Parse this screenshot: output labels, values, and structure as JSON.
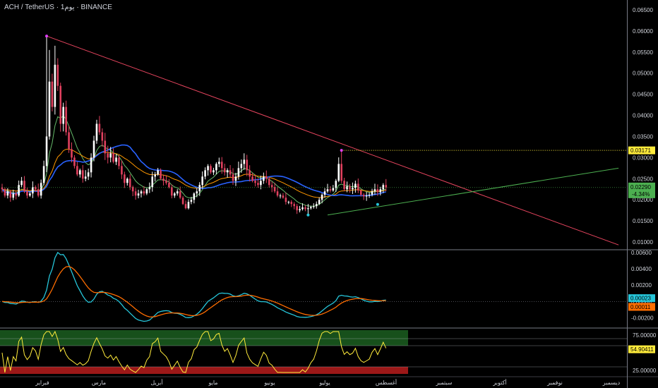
{
  "header": {
    "symbol": "ACH / TetherUS",
    "interval": "1يوم",
    "exchange": "BINANCE",
    "sep": "·"
  },
  "colors": {
    "background": "#000000",
    "up": "#ffffff",
    "down": "#e0405e",
    "resistance": "#e8455f",
    "support": "#4caf50",
    "ma_fast": "#66bb6a",
    "ma_mid": "#ff9800",
    "ma_slow": "#2962ff",
    "macd": "#26c6da",
    "signal": "#ff6d00",
    "rsi": "#ffeb3b",
    "overbought": "#1b5e20",
    "oversold": "#b71c1c"
  },
  "chart_data": [
    {
      "type": "candlestick",
      "name": "price",
      "y_ticks": [
        "0.06500",
        "0.06000",
        "0.05500",
        "0.05000",
        "0.04500",
        "0.04000",
        "0.03500",
        "0.03000",
        "0.02500",
        "0.02000",
        "0.01500",
        "0.01000"
      ],
      "ylim": [
        0.0085,
        0.066
      ],
      "x_tick_labels": [
        "فبراير",
        "مارس",
        "أبريل",
        "مايو",
        "يونيو",
        "يوليو",
        "أغسطس",
        "سبتمبر",
        "أكتوبر",
        "نوفمبر",
        "ديسمبر"
      ],
      "closes": [
        0.0225,
        0.021,
        0.022,
        0.0205,
        0.0215,
        0.021,
        0.0235,
        0.0245,
        0.022,
        0.021,
        0.0215,
        0.023,
        0.0225,
        0.021,
        0.024,
        0.028,
        0.035,
        0.048,
        0.042,
        0.052,
        0.047,
        0.038,
        0.042,
        0.036,
        0.032,
        0.03,
        0.028,
        0.026,
        0.027,
        0.025,
        0.0255,
        0.0265,
        0.03,
        0.034,
        0.038,
        0.036,
        0.034,
        0.031,
        0.03,
        0.031,
        0.029,
        0.03,
        0.028,
        0.026,
        0.024,
        0.025,
        0.023,
        0.022,
        0.021,
        0.0215,
        0.022,
        0.0215,
        0.0225,
        0.023,
        0.0255,
        0.026,
        0.027,
        0.025,
        0.0245,
        0.024,
        0.023,
        0.021,
        0.0215,
        0.022,
        0.0205,
        0.019,
        0.018,
        0.0195,
        0.02,
        0.0215,
        0.022,
        0.0235,
        0.0255,
        0.027,
        0.028,
        0.0265,
        0.027,
        0.0285,
        0.029,
        0.0275,
        0.0265,
        0.027,
        0.026,
        0.0245,
        0.0255,
        0.0275,
        0.0285,
        0.0295,
        0.027,
        0.0255,
        0.0245,
        0.024,
        0.0235,
        0.0245,
        0.0255,
        0.025,
        0.0235,
        0.023,
        0.022,
        0.021,
        0.021,
        0.0205,
        0.0195,
        0.0195,
        0.019,
        0.0185,
        0.0175,
        0.0178,
        0.0182,
        0.0178,
        0.018,
        0.0183,
        0.0185,
        0.019,
        0.02,
        0.0212,
        0.022,
        0.0225,
        0.0222,
        0.0228,
        0.0245,
        0.0285,
        0.0245,
        0.0225,
        0.0232,
        0.0225,
        0.0228,
        0.0238,
        0.0222,
        0.0212,
        0.0208,
        0.021,
        0.0212,
        0.022,
        0.0225,
        0.0218,
        0.0225,
        0.0235,
        0.0229
      ],
      "annotations": {
        "resistance_line": {
          "from": [
            0.0588,
            16
          ],
          "to": [
            0.0093,
            248
          ]
        },
        "support_line": {
          "from": [
            0.0164,
            117
          ],
          "to": [
            0.0275,
            248
          ]
        },
        "swing_high_1": 0.0588,
        "swing_high_2": 0.03171,
        "swing_low": 0.0164
      },
      "last_price_label": "0.02290",
      "change_label": "-4.34%",
      "level_label": "0.03171"
    },
    {
      "type": "line",
      "name": "macd",
      "y_ticks": [
        "0.00600",
        "0.00400",
        "0.00200",
        "0.00000",
        "-0.00200"
      ],
      "ylim": [
        -0.0031,
        0.0061
      ],
      "last_macd_label": "0.00023",
      "last_signal_label": "0.00011"
    },
    {
      "type": "line",
      "name": "rsi",
      "y_ticks": [
        "75.00000",
        "25.00000"
      ],
      "ylim": [
        18,
        82
      ],
      "levels": [
        70,
        60,
        30
      ],
      "last_label": "54.90411"
    }
  ]
}
